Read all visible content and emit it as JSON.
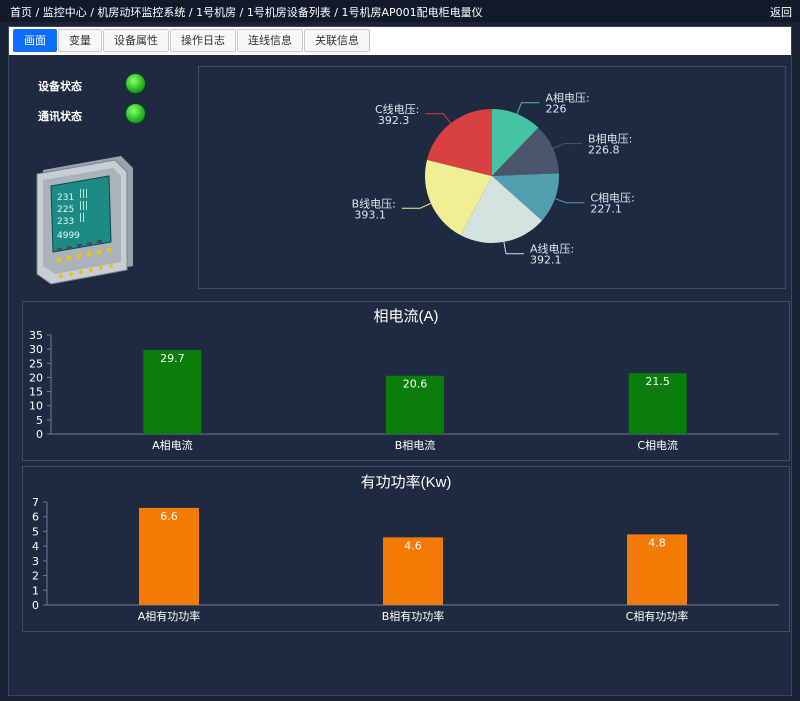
{
  "breadcrumb": {
    "items": [
      "首页",
      "监控中心",
      "机房动环监控系统",
      "1号机房",
      "1号机房设备列表",
      "1号机房AP001配电柜电量仪"
    ],
    "separator": " / ",
    "back_label": "返回"
  },
  "tabs": [
    {
      "label": "画面",
      "active": true
    },
    {
      "label": "变量",
      "active": false
    },
    {
      "label": "设备属性",
      "active": false
    },
    {
      "label": "操作日志",
      "active": false
    },
    {
      "label": "连线信息",
      "active": false
    },
    {
      "label": "关联信息",
      "active": false
    }
  ],
  "status": {
    "device_label": "设备状态",
    "device_state_color": "#33cc33",
    "comm_label": "通讯状态",
    "comm_state_color": "#33cc33"
  },
  "device_image": {
    "icon": "power-meter-icon"
  },
  "chart_data": [
    {
      "type": "pie",
      "slices": [
        {
          "label": "A相电压:",
          "value": 226,
          "display": "226",
          "color": "#45c3a3"
        },
        {
          "label": "B相电压:",
          "value": 226.8,
          "display": "226.8",
          "color": "#4b566b"
        },
        {
          "label": "C相电压:",
          "value": 227.1,
          "display": "227.1",
          "color": "#4f9fae"
        },
        {
          "label": "A线电压:",
          "value": 392.1,
          "display": "392.1",
          "color": "#d3e3dd"
        },
        {
          "label": "B线电压:",
          "value": 393.1,
          "display": "393.1",
          "color": "#f0ef93"
        },
        {
          "label": "C线电压:",
          "value": 392.3,
          "display": "392.3",
          "color": "#d94040"
        }
      ]
    },
    {
      "type": "bar",
      "title": "相电流(A)",
      "categories": [
        "A相电流",
        "B相电流",
        "C相电流"
      ],
      "values": [
        29.7,
        20.6,
        21.5
      ],
      "ylim": [
        0,
        35
      ],
      "yticks": [
        0,
        5,
        10,
        15,
        20,
        25,
        30,
        35
      ],
      "bar_color": "#0a7d0a"
    },
    {
      "type": "bar",
      "title": "有功功率(Kw)",
      "categories": [
        "A相有功功率",
        "B相有功功率",
        "C相有功功率"
      ],
      "values": [
        6.6,
        4.6,
        4.8
      ],
      "ylim": [
        0,
        7
      ],
      "yticks": [
        0,
        1,
        2,
        3,
        4,
        5,
        6,
        7
      ],
      "bar_color": "#f27a05"
    }
  ]
}
